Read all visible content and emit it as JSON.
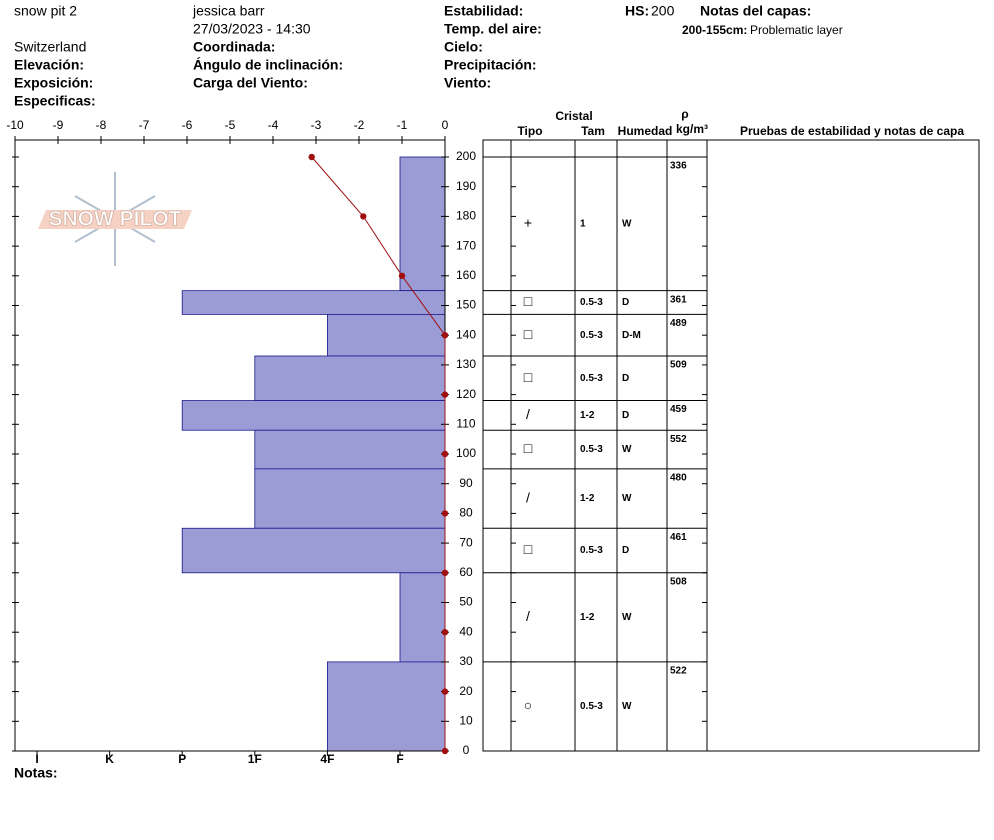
{
  "header": {
    "pit_name": "snow pit 2",
    "observer": "jessica barr",
    "datetime": "27/03/2023 - 14:30",
    "location": "Switzerland",
    "elevation_label": "Elevación:",
    "aspect_label": "Exposición:",
    "specifics_label": "Especificas:",
    "coord_label": "Coordinada:",
    "slope_label": "Ángulo de inclinación:",
    "wind_load_label": "Carga del Viento:",
    "stability_label": "Estabilidad:",
    "air_temp_label": "Temp. del aire:",
    "sky_label": "Cielo:",
    "precip_label": "Precipitación:",
    "wind_label": "Viento:",
    "hs_label": "HS:",
    "hs_value": "200",
    "layer_notes_label": "Notas del capas:",
    "layer_note_range": "200-155cm:",
    "layer_note_text": "Problematic layer",
    "logo": "SNOW PILOT",
    "notes_label": "Notas:"
  },
  "table": {
    "crystal": "Cristal",
    "type": "Tipo",
    "size": "Tam",
    "moisture": "Humedad",
    "rho": "ρ",
    "density_unit": "kg/m³",
    "tests": "Pruebas de estabilidad y notas de capa"
  },
  "chart_data": {
    "type": "snow-profile",
    "xlim": [
      -10,
      0
    ],
    "xticks": [
      -10,
      -9,
      -8,
      -7,
      -6,
      -5,
      -4,
      -3,
      -2,
      -1,
      0
    ],
    "ylim": [
      0,
      200
    ],
    "yticks": [
      0,
      10,
      20,
      30,
      40,
      50,
      60,
      70,
      80,
      90,
      100,
      110,
      120,
      130,
      140,
      150,
      160,
      170,
      180,
      190,
      200
    ],
    "hardness_scale": [
      "I",
      "K",
      "P",
      "1F",
      "4F",
      "F"
    ],
    "color": "#9b9bd6",
    "layers": [
      {
        "top": 200,
        "bottom": 155,
        "hardness": "F",
        "crystal": "+",
        "size": "1",
        "moisture": "W",
        "density": 336
      },
      {
        "top": 155,
        "bottom": 147,
        "hardness": "P",
        "crystal": "□",
        "size": "0.5-3",
        "moisture": "D",
        "density": 361
      },
      {
        "top": 147,
        "bottom": 133,
        "hardness": "4F",
        "crystal": "□",
        "size": "0.5-3",
        "moisture": "D-M",
        "density": 489
      },
      {
        "top": 133,
        "bottom": 118,
        "hardness": "1F",
        "crystal": "□",
        "size": "0.5-3",
        "moisture": "D",
        "density": 509
      },
      {
        "top": 118,
        "bottom": 108,
        "hardness": "P",
        "crystal": "/",
        "size": "1-2",
        "moisture": "D",
        "density": 459
      },
      {
        "top": 108,
        "bottom": 95,
        "hardness": "1F",
        "crystal": "□",
        "size": "0.5-3",
        "moisture": "W",
        "density": 552
      },
      {
        "top": 95,
        "bottom": 75,
        "hardness": "1F",
        "crystal": "/",
        "size": "1-2",
        "moisture": "W",
        "density": 480
      },
      {
        "top": 75,
        "bottom": 60,
        "hardness": "P",
        "crystal": "□",
        "size": "0.5-3",
        "moisture": "D",
        "density": 461
      },
      {
        "top": 60,
        "bottom": 30,
        "hardness": "F",
        "crystal": "/",
        "size": "1-2",
        "moisture": "W",
        "density": 508
      },
      {
        "top": 30,
        "bottom": 0,
        "hardness": "4F",
        "crystal": "○",
        "size": "0.5-3",
        "moisture": "W",
        "density": 522
      }
    ],
    "temperature": {
      "color": "#a01010",
      "depth": [
        200,
        180,
        160,
        140,
        120,
        100,
        80,
        60,
        40,
        20,
        0
      ],
      "values": [
        -3.1,
        -1.9,
        -1.0,
        0,
        0,
        0,
        0,
        0,
        0,
        0,
        0
      ]
    }
  }
}
